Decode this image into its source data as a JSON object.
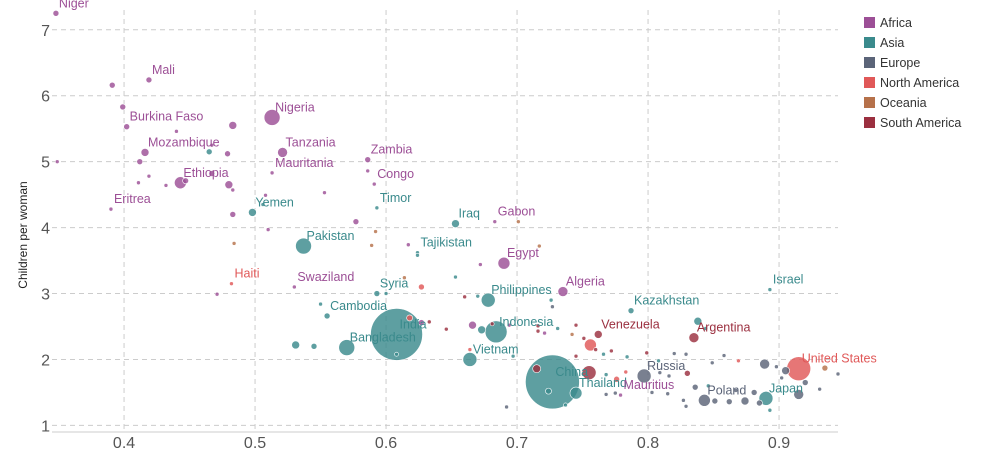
{
  "chart_data": {
    "type": "scatter",
    "xlabel": "",
    "ylabel": "Children per woman",
    "xlim": [
      0.345,
      0.945
    ],
    "ylim": [
      0.9,
      7.3
    ],
    "x_ticks": [
      "0.4",
      "0.5",
      "0.6",
      "0.7",
      "0.8",
      "0.9"
    ],
    "y_ticks": [
      "1",
      "2",
      "3",
      "4",
      "5",
      "6",
      "7"
    ],
    "grid": true,
    "legend_position": "top-right",
    "series": [
      {
        "name": "Africa",
        "color": "#9c4f96"
      },
      {
        "name": "Asia",
        "color": "#3a8a8c"
      },
      {
        "name": "Europe",
        "color": "#5b6478"
      },
      {
        "name": "North America",
        "color": "#e05858"
      },
      {
        "name": "Oceania",
        "color": "#b6714a"
      },
      {
        "name": "South America",
        "color": "#9b2f3f"
      }
    ],
    "labeled_points": [
      {
        "label": "Niger",
        "x": 0.348,
        "y": 7.25,
        "size": 3,
        "region": "Africa"
      },
      {
        "label": "Mali",
        "x": 0.419,
        "y": 6.24,
        "size": 3,
        "region": "Africa"
      },
      {
        "label": "Burkina Faso",
        "x": 0.402,
        "y": 5.53,
        "size": 3,
        "region": "Africa"
      },
      {
        "label": "Nigeria",
        "x": 0.513,
        "y": 5.67,
        "size": 8,
        "region": "Africa"
      },
      {
        "label": "Mozambique",
        "x": 0.416,
        "y": 5.14,
        "size": 4,
        "region": "Africa"
      },
      {
        "label": "Tanzania",
        "x": 0.521,
        "y": 5.14,
        "size": 5,
        "region": "Africa"
      },
      {
        "label": "Zambia",
        "x": 0.586,
        "y": 5.03,
        "size": 3,
        "region": "Africa"
      },
      {
        "label": "Ethiopia",
        "x": 0.443,
        "y": 4.68,
        "size": 6,
        "region": "Africa"
      },
      {
        "label": "Mauritania",
        "x": 0.513,
        "y": 4.83,
        "size": 2,
        "region": "Africa"
      },
      {
        "label": "Congo",
        "x": 0.591,
        "y": 4.66,
        "size": 2,
        "region": "Africa"
      },
      {
        "label": "Eritrea",
        "x": 0.39,
        "y": 4.28,
        "size": 2,
        "region": "Africa"
      },
      {
        "label": "Yemen",
        "x": 0.498,
        "y": 4.23,
        "size": 4,
        "region": "Asia"
      },
      {
        "label": "Timor",
        "x": 0.593,
        "y": 4.3,
        "size": 2,
        "region": "Asia"
      },
      {
        "label": "Iraq",
        "x": 0.653,
        "y": 4.06,
        "size": 4,
        "region": "Asia"
      },
      {
        "label": "Gabon",
        "x": 0.683,
        "y": 4.09,
        "size": 2,
        "region": "Africa"
      },
      {
        "label": "Pakistan",
        "x": 0.537,
        "y": 3.72,
        "size": 8,
        "region": "Asia"
      },
      {
        "label": "Tajikistan",
        "x": 0.624,
        "y": 3.62,
        "size": 2,
        "region": "Asia"
      },
      {
        "label": "Egypt",
        "x": 0.69,
        "y": 3.46,
        "size": 6,
        "region": "Africa"
      },
      {
        "label": "Haiti",
        "x": 0.482,
        "y": 3.15,
        "size": 2,
        "region": "North America"
      },
      {
        "label": "Swaziland",
        "x": 0.53,
        "y": 3.1,
        "size": 2,
        "region": "Africa"
      },
      {
        "label": "Syria",
        "x": 0.593,
        "y": 3.0,
        "size": 3,
        "region": "Asia"
      },
      {
        "label": "Philippines",
        "x": 0.678,
        "y": 2.9,
        "size": 7,
        "region": "Asia"
      },
      {
        "label": "Algeria",
        "x": 0.735,
        "y": 3.03,
        "size": 5,
        "region": "Africa"
      },
      {
        "label": "Israel",
        "x": 0.893,
        "y": 3.06,
        "size": 2,
        "region": "Asia"
      },
      {
        "label": "Kazakhstan",
        "x": 0.787,
        "y": 2.74,
        "size": 3,
        "region": "Asia"
      },
      {
        "label": "Cambodia",
        "x": 0.555,
        "y": 2.66,
        "size": 3,
        "region": "Asia"
      },
      {
        "label": "India",
        "x": 0.608,
        "y": 2.38,
        "size": 26,
        "region": "Asia"
      },
      {
        "label": "Indonesia",
        "x": 0.684,
        "y": 2.42,
        "size": 11,
        "region": "Asia"
      },
      {
        "label": "Venezuela",
        "x": 0.762,
        "y": 2.38,
        "size": 4,
        "region": "South America"
      },
      {
        "label": "Argentina",
        "x": 0.835,
        "y": 2.33,
        "size": 5,
        "region": "South America"
      },
      {
        "label": "Bangladesh",
        "x": 0.57,
        "y": 2.18,
        "size": 8,
        "region": "Asia"
      },
      {
        "label": "Vietnam",
        "x": 0.664,
        "y": 2.0,
        "size": 7,
        "region": "Asia"
      },
      {
        "label": "China",
        "x": 0.727,
        "y": 1.66,
        "size": 27,
        "region": "Asia"
      },
      {
        "label": "United States",
        "x": 0.915,
        "y": 1.86,
        "size": 12,
        "region": "North America"
      },
      {
        "label": "Russia",
        "x": 0.797,
        "y": 1.75,
        "size": 7,
        "region": "Europe"
      },
      {
        "label": "Thailand",
        "x": 0.745,
        "y": 1.49,
        "size": 6,
        "region": "Asia"
      },
      {
        "label": "Mauritius",
        "x": 0.779,
        "y": 1.46,
        "size": 2,
        "region": "Africa"
      },
      {
        "label": "Poland",
        "x": 0.843,
        "y": 1.38,
        "size": 6,
        "region": "Europe"
      },
      {
        "label": "Japan",
        "x": 0.89,
        "y": 1.41,
        "size": 7,
        "region": "Asia"
      }
    ],
    "other_points": [
      {
        "x": 0.391,
        "y": 6.16,
        "size": 3,
        "region": "Africa"
      },
      {
        "x": 0.349,
        "y": 5.0,
        "size": 2,
        "region": "Africa"
      },
      {
        "x": 0.399,
        "y": 5.83,
        "size": 3,
        "region": "Africa"
      },
      {
        "x": 0.44,
        "y": 5.46,
        "size": 2,
        "region": "Africa"
      },
      {
        "x": 0.483,
        "y": 5.55,
        "size": 4,
        "region": "Africa"
      },
      {
        "x": 0.467,
        "y": 5.25,
        "size": 2,
        "region": "Africa"
      },
      {
        "x": 0.465,
        "y": 5.15,
        "size": 3,
        "region": "Asia"
      },
      {
        "x": 0.479,
        "y": 5.12,
        "size": 3,
        "region": "Africa"
      },
      {
        "x": 0.412,
        "y": 5.0,
        "size": 3,
        "region": "Africa"
      },
      {
        "x": 0.432,
        "y": 4.64,
        "size": 2,
        "region": "Africa"
      },
      {
        "x": 0.411,
        "y": 4.68,
        "size": 2,
        "region": "Africa"
      },
      {
        "x": 0.419,
        "y": 4.78,
        "size": 2,
        "region": "Africa"
      },
      {
        "x": 0.447,
        "y": 4.71,
        "size": 3,
        "region": "Africa"
      },
      {
        "x": 0.467,
        "y": 4.82,
        "size": 3,
        "region": "Africa"
      },
      {
        "x": 0.48,
        "y": 4.65,
        "size": 4,
        "region": "Africa"
      },
      {
        "x": 0.483,
        "y": 4.57,
        "size": 2,
        "region": "Africa"
      },
      {
        "x": 0.483,
        "y": 4.2,
        "size": 3,
        "region": "Africa"
      },
      {
        "x": 0.506,
        "y": 4.35,
        "size": 2,
        "region": "Asia"
      },
      {
        "x": 0.51,
        "y": 3.97,
        "size": 2,
        "region": "Africa"
      },
      {
        "x": 0.508,
        "y": 4.49,
        "size": 2,
        "region": "Africa"
      },
      {
        "x": 0.553,
        "y": 4.53,
        "size": 2,
        "region": "Africa"
      },
      {
        "x": 0.586,
        "y": 4.86,
        "size": 2,
        "region": "Africa"
      },
      {
        "x": 0.577,
        "y": 4.09,
        "size": 3,
        "region": "Africa"
      },
      {
        "x": 0.592,
        "y": 3.94,
        "size": 2,
        "region": "Oceania"
      },
      {
        "x": 0.589,
        "y": 3.73,
        "size": 2,
        "region": "Oceania"
      },
      {
        "x": 0.484,
        "y": 3.76,
        "size": 2,
        "region": "Oceania"
      },
      {
        "x": 0.617,
        "y": 3.74,
        "size": 2,
        "region": "Africa"
      },
      {
        "x": 0.624,
        "y": 3.58,
        "size": 2,
        "region": "Asia"
      },
      {
        "x": 0.701,
        "y": 4.09,
        "size": 2,
        "region": "Oceania"
      },
      {
        "x": 0.717,
        "y": 3.72,
        "size": 2,
        "region": "Oceania"
      },
      {
        "x": 0.672,
        "y": 3.44,
        "size": 2,
        "region": "Africa"
      },
      {
        "x": 0.653,
        "y": 3.25,
        "size": 2,
        "region": "Asia"
      },
      {
        "x": 0.614,
        "y": 3.24,
        "size": 2,
        "region": "Oceania"
      },
      {
        "x": 0.627,
        "y": 3.1,
        "size": 3,
        "region": "North America"
      },
      {
        "x": 0.471,
        "y": 2.99,
        "size": 2,
        "region": "Africa"
      },
      {
        "x": 0.6,
        "y": 3.0,
        "size": 2,
        "region": "Asia"
      },
      {
        "x": 0.66,
        "y": 2.95,
        "size": 2,
        "region": "South America"
      },
      {
        "x": 0.67,
        "y": 2.96,
        "size": 2,
        "region": "Asia"
      },
      {
        "x": 0.726,
        "y": 2.9,
        "size": 2,
        "region": "Asia"
      },
      {
        "x": 0.727,
        "y": 2.8,
        "size": 2,
        "region": "Europe"
      },
      {
        "x": 0.55,
        "y": 2.84,
        "size": 2,
        "region": "Asia"
      },
      {
        "x": 0.627,
        "y": 2.56,
        "size": 3,
        "region": "Africa"
      },
      {
        "x": 0.633,
        "y": 2.57,
        "size": 2,
        "region": "South America"
      },
      {
        "x": 0.618,
        "y": 2.63,
        "size": 3,
        "region": "North America"
      },
      {
        "x": 0.646,
        "y": 2.46,
        "size": 2,
        "region": "South America"
      },
      {
        "x": 0.666,
        "y": 2.52,
        "size": 4,
        "region": "Africa"
      },
      {
        "x": 0.673,
        "y": 2.45,
        "size": 4,
        "region": "Asia"
      },
      {
        "x": 0.681,
        "y": 2.54,
        "size": 2,
        "region": "South America"
      },
      {
        "x": 0.694,
        "y": 2.52,
        "size": 2,
        "region": "Africa"
      },
      {
        "x": 0.716,
        "y": 2.51,
        "size": 2,
        "region": "South America"
      },
      {
        "x": 0.716,
        "y": 2.43,
        "size": 2,
        "region": "South America"
      },
      {
        "x": 0.721,
        "y": 2.4,
        "size": 2,
        "region": "Africa"
      },
      {
        "x": 0.731,
        "y": 2.47,
        "size": 2,
        "region": "Asia"
      },
      {
        "x": 0.742,
        "y": 2.38,
        "size": 2,
        "region": "Oceania"
      },
      {
        "x": 0.745,
        "y": 2.52,
        "size": 2,
        "region": "South America"
      },
      {
        "x": 0.751,
        "y": 2.32,
        "size": 2,
        "region": "South America"
      },
      {
        "x": 0.756,
        "y": 2.22,
        "size": 6,
        "region": "North America"
      },
      {
        "x": 0.838,
        "y": 2.58,
        "size": 4,
        "region": "Asia"
      },
      {
        "x": 0.844,
        "y": 2.47,
        "size": 2,
        "region": "Asia"
      },
      {
        "x": 0.531,
        "y": 2.22,
        "size": 4,
        "region": "Asia"
      },
      {
        "x": 0.545,
        "y": 2.2,
        "size": 3,
        "region": "Asia"
      },
      {
        "x": 0.608,
        "y": 2.08,
        "size": 2,
        "region": "Asia"
      },
      {
        "x": 0.664,
        "y": 2.15,
        "size": 2,
        "region": "North America"
      },
      {
        "x": 0.697,
        "y": 2.05,
        "size": 2,
        "region": "Asia"
      },
      {
        "x": 0.715,
        "y": 1.86,
        "size": 4,
        "region": "South America"
      },
      {
        "x": 0.745,
        "y": 2.05,
        "size": 2,
        "region": "South America"
      },
      {
        "x": 0.76,
        "y": 2.15,
        "size": 2,
        "region": "South America"
      },
      {
        "x": 0.766,
        "y": 2.08,
        "size": 2,
        "region": "Asia"
      },
      {
        "x": 0.772,
        "y": 2.13,
        "size": 2,
        "region": "South America"
      },
      {
        "x": 0.784,
        "y": 2.04,
        "size": 2,
        "region": "Asia"
      },
      {
        "x": 0.799,
        "y": 2.1,
        "size": 2,
        "region": "South America"
      },
      {
        "x": 0.808,
        "y": 1.98,
        "size": 2,
        "region": "Asia"
      },
      {
        "x": 0.82,
        "y": 2.09,
        "size": 2,
        "region": "Europe"
      },
      {
        "x": 0.829,
        "y": 2.08,
        "size": 2,
        "region": "Europe"
      },
      {
        "x": 0.849,
        "y": 1.95,
        "size": 2,
        "region": "Europe"
      },
      {
        "x": 0.858,
        "y": 2.06,
        "size": 2,
        "region": "Europe"
      },
      {
        "x": 0.869,
        "y": 1.98,
        "size": 2,
        "region": "North America"
      },
      {
        "x": 0.889,
        "y": 1.93,
        "size": 5,
        "region": "Europe"
      },
      {
        "x": 0.898,
        "y": 1.89,
        "size": 2,
        "region": "Europe"
      },
      {
        "x": 0.905,
        "y": 1.83,
        "size": 4,
        "region": "Europe"
      },
      {
        "x": 0.935,
        "y": 1.87,
        "size": 3,
        "region": "Oceania"
      },
      {
        "x": 0.945,
        "y": 1.78,
        "size": 2,
        "region": "Europe"
      },
      {
        "x": 0.755,
        "y": 1.8,
        "size": 7,
        "region": "South America"
      },
      {
        "x": 0.768,
        "y": 1.77,
        "size": 2,
        "region": "Asia"
      },
      {
        "x": 0.776,
        "y": 1.7,
        "size": 3,
        "region": "North America"
      },
      {
        "x": 0.783,
        "y": 1.81,
        "size": 2,
        "region": "North America"
      },
      {
        "x": 0.809,
        "y": 1.8,
        "size": 2,
        "region": "Europe"
      },
      {
        "x": 0.816,
        "y": 1.75,
        "size": 2,
        "region": "Europe"
      },
      {
        "x": 0.83,
        "y": 1.79,
        "size": 3,
        "region": "South America"
      },
      {
        "x": 0.836,
        "y": 1.58,
        "size": 3,
        "region": "Europe"
      },
      {
        "x": 0.846,
        "y": 1.6,
        "size": 2,
        "region": "Asia"
      },
      {
        "x": 0.867,
        "y": 1.53,
        "size": 2,
        "region": "Europe"
      },
      {
        "x": 0.881,
        "y": 1.5,
        "size": 3,
        "region": "Europe"
      },
      {
        "x": 0.902,
        "y": 1.72,
        "size": 2,
        "region": "Europe"
      },
      {
        "x": 0.915,
        "y": 1.47,
        "size": 5,
        "region": "Europe"
      },
      {
        "x": 0.92,
        "y": 1.65,
        "size": 3,
        "region": "Europe"
      },
      {
        "x": 0.931,
        "y": 1.55,
        "size": 2,
        "region": "Europe"
      },
      {
        "x": 0.724,
        "y": 1.52,
        "size": 3,
        "region": "Asia"
      },
      {
        "x": 0.737,
        "y": 1.31,
        "size": 2,
        "region": "Asia"
      },
      {
        "x": 0.768,
        "y": 1.47,
        "size": 2,
        "region": "Europe"
      },
      {
        "x": 0.775,
        "y": 1.49,
        "size": 2,
        "region": "Europe"
      },
      {
        "x": 0.803,
        "y": 1.5,
        "size": 2,
        "region": "Europe"
      },
      {
        "x": 0.815,
        "y": 1.48,
        "size": 2,
        "region": "Europe"
      },
      {
        "x": 0.827,
        "y": 1.38,
        "size": 2,
        "region": "Europe"
      },
      {
        "x": 0.829,
        "y": 1.29,
        "size": 2,
        "region": "Europe"
      },
      {
        "x": 0.851,
        "y": 1.37,
        "size": 3,
        "region": "Europe"
      },
      {
        "x": 0.862,
        "y": 1.36,
        "size": 3,
        "region": "Europe"
      },
      {
        "x": 0.874,
        "y": 1.37,
        "size": 4,
        "region": "Europe"
      },
      {
        "x": 0.885,
        "y": 1.34,
        "size": 3,
        "region": "Europe"
      },
      {
        "x": 0.893,
        "y": 1.23,
        "size": 2,
        "region": "Asia"
      },
      {
        "x": 0.692,
        "y": 1.28,
        "size": 2,
        "region": "Europe"
      }
    ]
  }
}
